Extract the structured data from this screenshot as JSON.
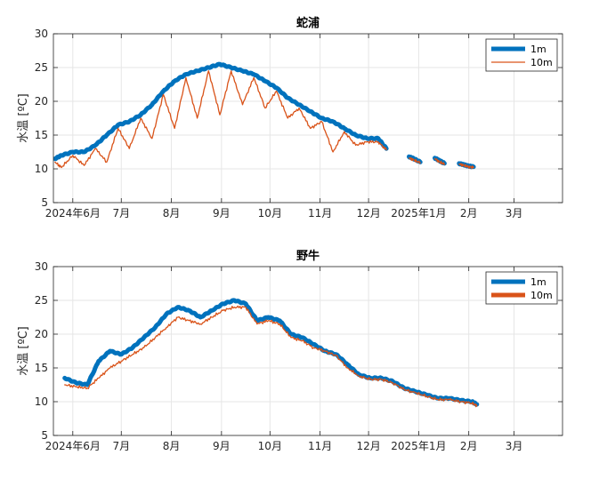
{
  "colors": {
    "series_1m": "#0072BD",
    "series_10m": "#D95319",
    "grid": "#e6e6e6",
    "axis": "#262626"
  },
  "chart_data": [
    {
      "type": "line",
      "title": "蛇浦",
      "ylabel": "水温 [ºC]",
      "ylim": [
        5,
        30
      ],
      "yticks": [
        5,
        10,
        15,
        20,
        25,
        30
      ],
      "xlim": [
        "2024-05-20",
        "2025-03-31"
      ],
      "xticks": [
        {
          "date": "2024-06-01",
          "label": "2024年6月"
        },
        {
          "date": "2024-07-01",
          "label": "7月"
        },
        {
          "date": "2024-08-01",
          "label": "8月"
        },
        {
          "date": "2024-09-01",
          "label": "9月"
        },
        {
          "date": "2024-10-01",
          "label": "10月"
        },
        {
          "date": "2024-11-01",
          "label": "11月"
        },
        {
          "date": "2024-12-01",
          "label": "12月"
        },
        {
          "date": "2025-01-01",
          "label": "2025年1月"
        },
        {
          "date": "2025-02-01",
          "label": "2月"
        },
        {
          "date": "2025-03-01",
          "label": "3月"
        }
      ],
      "grid": true,
      "legend": "top-right",
      "series": [
        {
          "name": "1m",
          "segments": [
            [
              [
                "2024-05-21",
                11.5
              ],
              [
                "2024-05-25",
                12.0
              ],
              [
                "2024-06-01",
                12.5
              ],
              [
                "2024-06-08",
                12.5
              ],
              [
                "2024-06-15",
                13.5
              ],
              [
                "2024-06-22",
                15.0
              ],
              [
                "2024-06-29",
                16.5
              ],
              [
                "2024-07-06",
                17.0
              ],
              [
                "2024-07-13",
                18.0
              ],
              [
                "2024-07-20",
                19.5
              ],
              [
                "2024-07-27",
                21.5
              ],
              [
                "2024-08-03",
                23.0
              ],
              [
                "2024-08-10",
                24.0
              ],
              [
                "2024-08-17",
                24.5
              ],
              [
                "2024-08-24",
                25.0
              ],
              [
                "2024-08-31",
                25.5
              ],
              [
                "2024-09-07",
                25.0
              ],
              [
                "2024-09-14",
                24.5
              ],
              [
                "2024-09-21",
                24.0
              ],
              [
                "2024-09-28",
                23.0
              ],
              [
                "2024-10-05",
                22.0
              ],
              [
                "2024-10-12",
                20.5
              ],
              [
                "2024-10-19",
                19.5
              ],
              [
                "2024-10-26",
                18.5
              ],
              [
                "2024-11-02",
                17.5
              ],
              [
                "2024-11-09",
                17.0
              ],
              [
                "2024-11-16",
                16.0
              ],
              [
                "2024-11-23",
                15.0
              ],
              [
                "2024-11-30",
                14.5
              ],
              [
                "2024-12-07",
                14.5
              ],
              [
                "2024-12-12",
                13.0
              ]
            ],
            [
              [
                "2024-12-26",
                11.8
              ],
              [
                "2024-12-29",
                11.5
              ],
              [
                "2025-01-02",
                11.0
              ]
            ],
            [
              [
                "2025-01-11",
                11.6
              ],
              [
                "2025-01-14",
                11.2
              ],
              [
                "2025-01-17",
                10.8
              ]
            ],
            [
              [
                "2025-01-26",
                10.8
              ],
              [
                "2025-01-29",
                10.6
              ],
              [
                "2025-02-01",
                10.4
              ],
              [
                "2025-02-04",
                10.3
              ]
            ]
          ]
        },
        {
          "name": "10m",
          "segments": [
            [
              [
                "2024-05-21",
                11.0
              ],
              [
                "2024-05-25",
                10.2
              ],
              [
                "2024-06-01",
                12.0
              ],
              [
                "2024-06-08",
                10.5
              ],
              [
                "2024-06-15",
                13.0
              ],
              [
                "2024-06-22",
                11.0
              ],
              [
                "2024-06-29",
                16.0
              ],
              [
                "2024-07-06",
                13.0
              ],
              [
                "2024-07-13",
                17.5
              ],
              [
                "2024-07-20",
                14.5
              ],
              [
                "2024-07-27",
                21.0
              ],
              [
                "2024-08-03",
                16.0
              ],
              [
                "2024-08-10",
                23.5
              ],
              [
                "2024-08-17",
                17.5
              ],
              [
                "2024-08-24",
                24.5
              ],
              [
                "2024-08-31",
                18.0
              ],
              [
                "2024-09-07",
                24.5
              ],
              [
                "2024-09-14",
                19.5
              ],
              [
                "2024-09-21",
                23.5
              ],
              [
                "2024-09-28",
                19.0
              ],
              [
                "2024-10-05",
                21.5
              ],
              [
                "2024-10-12",
                17.5
              ],
              [
                "2024-10-19",
                19.0
              ],
              [
                "2024-10-26",
                16.0
              ],
              [
                "2024-11-02",
                17.0
              ],
              [
                "2024-11-09",
                12.5
              ],
              [
                "2024-11-16",
                15.5
              ],
              [
                "2024-11-23",
                13.5
              ],
              [
                "2024-11-30",
                14.0
              ],
              [
                "2024-12-07",
                14.0
              ],
              [
                "2024-12-12",
                12.8
              ]
            ],
            [
              [
                "2024-12-26",
                11.6
              ],
              [
                "2024-12-29",
                11.3
              ],
              [
                "2025-01-02",
                10.9
              ]
            ],
            [
              [
                "2025-01-11",
                11.5
              ],
              [
                "2025-01-14",
                11.0
              ],
              [
                "2025-01-17",
                10.7
              ]
            ],
            [
              [
                "2025-01-26",
                10.7
              ],
              [
                "2025-01-29",
                10.5
              ],
              [
                "2025-02-01",
                10.3
              ],
              [
                "2025-02-04",
                10.2
              ]
            ]
          ]
        }
      ]
    },
    {
      "type": "line",
      "title": "野牛",
      "ylabel": "水温 [ºC]",
      "ylim": [
        5,
        30
      ],
      "yticks": [
        5,
        10,
        15,
        20,
        25,
        30
      ],
      "xlim": [
        "2024-05-20",
        "2025-03-31"
      ],
      "xticks": [
        {
          "date": "2024-06-01",
          "label": "2024年6月"
        },
        {
          "date": "2024-07-01",
          "label": "7月"
        },
        {
          "date": "2024-08-01",
          "label": "8月"
        },
        {
          "date": "2024-09-01",
          "label": "9月"
        },
        {
          "date": "2024-10-01",
          "label": "10月"
        },
        {
          "date": "2024-11-01",
          "label": "11月"
        },
        {
          "date": "2024-12-01",
          "label": "12月"
        },
        {
          "date": "2025-01-01",
          "label": "2025年1月"
        },
        {
          "date": "2025-02-01",
          "label": "2月"
        },
        {
          "date": "2025-03-01",
          "label": "3月"
        }
      ],
      "grid": true,
      "legend": "top-right",
      "series": [
        {
          "name": "1m",
          "segments": [
            [
              [
                "2024-05-27",
                13.5
              ],
              [
                "2024-06-03",
                12.8
              ],
              [
                "2024-06-10",
                12.5
              ],
              [
                "2024-06-17",
                16.0
              ],
              [
                "2024-06-24",
                17.5
              ],
              [
                "2024-07-01",
                17.0
              ],
              [
                "2024-07-08",
                18.0
              ],
              [
                "2024-07-15",
                19.5
              ],
              [
                "2024-07-22",
                21.0
              ],
              [
                "2024-07-29",
                23.0
              ],
              [
                "2024-08-05",
                24.0
              ],
              [
                "2024-08-12",
                23.5
              ],
              [
                "2024-08-19",
                22.5
              ],
              [
                "2024-08-26",
                23.5
              ],
              [
                "2024-09-02",
                24.5
              ],
              [
                "2024-09-09",
                25.0
              ],
              [
                "2024-09-16",
                24.5
              ],
              [
                "2024-09-23",
                22.0
              ],
              [
                "2024-09-30",
                22.5
              ],
              [
                "2024-10-07",
                22.0
              ],
              [
                "2024-10-14",
                20.0
              ],
              [
                "2024-10-21",
                19.5
              ],
              [
                "2024-10-28",
                18.5
              ],
              [
                "2024-11-04",
                17.5
              ],
              [
                "2024-11-11",
                17.0
              ],
              [
                "2024-11-18",
                15.5
              ],
              [
                "2024-11-25",
                14.0
              ],
              [
                "2024-12-02",
                13.5
              ],
              [
                "2024-12-09",
                13.5
              ],
              [
                "2024-12-16",
                13.0
              ],
              [
                "2024-12-23",
                12.0
              ],
              [
                "2024-12-30",
                11.5
              ],
              [
                "2025-01-06",
                11.0
              ],
              [
                "2025-01-13",
                10.5
              ],
              [
                "2025-01-20",
                10.5
              ],
              [
                "2025-01-27",
                10.2
              ],
              [
                "2025-02-03",
                10.0
              ],
              [
                "2025-02-06",
                9.6
              ]
            ]
          ]
        },
        {
          "name": "10m",
          "segments": [
            [
              [
                "2024-05-27",
                12.5
              ],
              [
                "2024-06-03",
                12.2
              ],
              [
                "2024-06-10",
                12.0
              ],
              [
                "2024-06-17",
                13.5
              ],
              [
                "2024-06-24",
                15.0
              ],
              [
                "2024-07-01",
                16.0
              ],
              [
                "2024-07-08",
                17.0
              ],
              [
                "2024-07-15",
                18.0
              ],
              [
                "2024-07-22",
                19.5
              ],
              [
                "2024-07-29",
                21.0
              ],
              [
                "2024-08-05",
                22.5
              ],
              [
                "2024-08-12",
                22.0
              ],
              [
                "2024-08-19",
                21.5
              ],
              [
                "2024-08-26",
                22.5
              ],
              [
                "2024-09-02",
                23.5
              ],
              [
                "2024-09-09",
                24.0
              ],
              [
                "2024-09-16",
                24.0
              ],
              [
                "2024-09-23",
                21.5
              ],
              [
                "2024-09-30",
                22.0
              ],
              [
                "2024-10-07",
                21.5
              ],
              [
                "2024-10-14",
                19.5
              ],
              [
                "2024-10-21",
                19.0
              ],
              [
                "2024-10-28",
                18.0
              ],
              [
                "2024-11-04",
                17.5
              ],
              [
                "2024-11-11",
                16.8
              ],
              [
                "2024-11-18",
                15.0
              ],
              [
                "2024-11-25",
                13.8
              ],
              [
                "2024-12-02",
                13.3
              ],
              [
                "2024-12-09",
                13.3
              ],
              [
                "2024-12-16",
                12.8
              ],
              [
                "2024-12-23",
                11.8
              ],
              [
                "2024-12-30",
                11.3
              ],
              [
                "2025-01-06",
                10.8
              ],
              [
                "2025-01-13",
                10.3
              ],
              [
                "2025-01-20",
                10.3
              ],
              [
                "2025-01-27",
                10.0
              ],
              [
                "2025-02-03",
                9.8
              ],
              [
                "2025-02-06",
                9.4
              ]
            ]
          ]
        }
      ]
    }
  ]
}
